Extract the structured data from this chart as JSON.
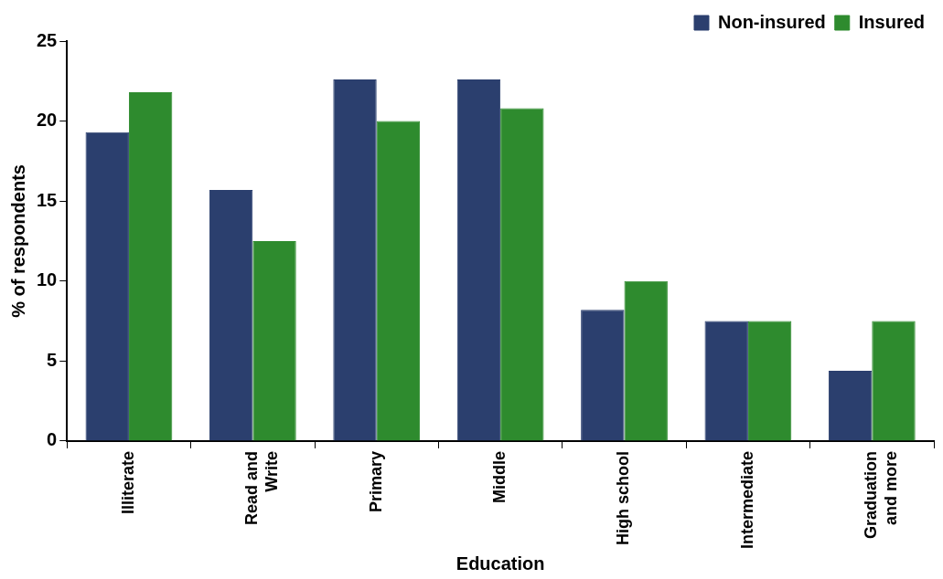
{
  "chart_data": {
    "type": "bar",
    "xlabel": "Education",
    "ylabel": "% of respondents",
    "categories": [
      "Illiterate",
      "Read and Write",
      "Primary",
      "Middle",
      "High school",
      "Intermediate",
      "Graduation and more"
    ],
    "series": [
      {
        "name": "Non-insured",
        "color": "#2b3f6e",
        "values": [
          19.3,
          15.7,
          22.6,
          22.6,
          8.2,
          7.5,
          4.4
        ]
      },
      {
        "name": "Insured",
        "color": "#2e8b2e",
        "values": [
          21.8,
          12.5,
          20.0,
          20.8,
          10.0,
          7.5,
          7.5
        ]
      }
    ],
    "ylim": [
      0,
      25
    ],
    "yticks": [
      0,
      5,
      10,
      15,
      20,
      25
    ],
    "grid": false,
    "legend": "top right"
  }
}
